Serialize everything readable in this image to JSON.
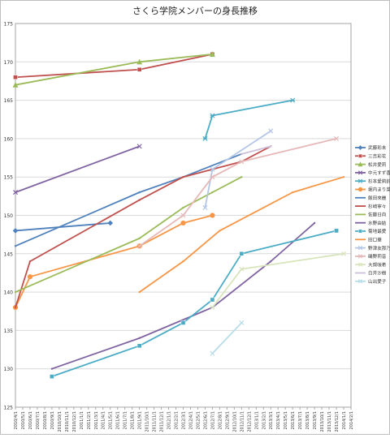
{
  "chart_data": {
    "type": "line",
    "title": "さくら学院メンバーの身長推移",
    "ylim": [
      125,
      175
    ],
    "y_ticks": [
      125,
      130,
      135,
      140,
      145,
      150,
      155,
      160,
      165,
      170,
      175
    ],
    "x_start": "2010/4/1",
    "x_tick_labels": [
      "2010/4/1",
      "2010/5/1",
      "2010/6/1",
      "2010/7/1",
      "2010/8/1",
      "2010/9/1",
      "2010/10/1",
      "2010/11/1",
      "2010/12/1",
      "2011/1/1",
      "2011/2/1",
      "2011/3/1",
      "2011/4/1",
      "2011/5/1",
      "2011/6/1",
      "2011/7/1",
      "2011/8/1",
      "2011/9/1",
      "2011/10/1",
      "2011/11/1",
      "2011/12/1",
      "2012/1/1",
      "2012/2/1",
      "2012/3/1",
      "2012/4/1",
      "2012/5/1",
      "2012/6/1",
      "2012/7/1",
      "2012/8/1",
      "2012/9/1",
      "2012/10/1",
      "2012/11/1",
      "2012/12/1",
      "2013/1/1",
      "2013/2/1",
      "2013/3/1",
      "2013/4/1",
      "2013/5/1",
      "2013/6/1",
      "2013/7/1",
      "2013/8/1",
      "2013/9/1",
      "2013/10/1",
      "2013/11/1",
      "2013/12/1",
      "2014/1/1",
      "2014/2/1"
    ],
    "grid": "horizontal",
    "legend_position": "right",
    "series": [
      {
        "name": "武藤彩未",
        "color": "#4F81BD",
        "marker": "diamond",
        "x": [
          "2010/4/1",
          "2011/5/1"
        ],
        "values": [
          148,
          149
        ]
      },
      {
        "name": "三吉彩花",
        "color": "#C0504D",
        "marker": "square",
        "x": [
          "2010/4/1",
          "2011/9/1",
          "2012/7/1"
        ],
        "values": [
          168,
          169,
          171
        ]
      },
      {
        "name": "松井愛莉",
        "color": "#9BBB59",
        "marker": "triangle",
        "x": [
          "2010/4/1",
          "2011/9/1",
          "2012/7/1"
        ],
        "values": [
          167,
          170,
          171
        ]
      },
      {
        "name": "中元すず香",
        "color": "#8064A2",
        "marker": "x",
        "x": [
          "2010/4/1",
          "2011/9/1"
        ],
        "values": [
          153,
          159
        ]
      },
      {
        "name": "杉本愛莉鈴",
        "color": "#4BACC6",
        "marker": "star",
        "x": [
          "2012/6/1",
          "2012/7/1",
          "2013/6/1"
        ],
        "values": [
          160,
          163,
          165
        ]
      },
      {
        "name": "堀内まり菜",
        "color": "#F79646",
        "marker": "circle",
        "x": [
          "2010/4/1",
          "2010/6/1",
          "2011/9/1",
          "2012/3/1",
          "2012/7/1"
        ],
        "values": [
          138,
          142,
          146,
          149,
          150
        ]
      },
      {
        "name": "飯田來麗",
        "color": "#4F81BD",
        "marker": "none",
        "x": [
          "2010/4/1",
          "2011/9/1",
          "2012/3/1",
          "2012/11/1"
        ],
        "values": [
          146,
          153,
          155,
          158
        ]
      },
      {
        "name": "杉﨑寧々",
        "color": "#C0504D",
        "marker": "none",
        "x": [
          "2010/4/1",
          "2010/6/1",
          "2011/9/1",
          "2012/3/1",
          "2012/11/1",
          "2013/3/1"
        ],
        "values": [
          138,
          144,
          152,
          155,
          157,
          159
        ]
      },
      {
        "name": "佐藤日向",
        "color": "#9BBB59",
        "marker": "none",
        "x": [
          "2010/4/1",
          "2011/9/1",
          "2012/3/1",
          "2012/7/1",
          "2012/11/1"
        ],
        "values": [
          140,
          147,
          151,
          153,
          155
        ]
      },
      {
        "name": "水野由結",
        "color": "#8064A2",
        "marker": "none",
        "x": [
          "2010/9/1",
          "2011/9/1",
          "2012/7/1",
          "2013/3/1",
          "2013/9/1"
        ],
        "values": [
          130,
          134,
          138,
          144,
          149
        ]
      },
      {
        "name": "菊地最愛",
        "color": "#4BACC6",
        "marker": "square",
        "x": [
          "2010/9/1",
          "2011/9/1",
          "2012/3/1",
          "2012/7/1",
          "2012/11/1",
          "2013/12/1"
        ],
        "values": [
          129,
          133,
          136,
          139,
          145,
          148
        ]
      },
      {
        "name": "田口華",
        "color": "#F79646",
        "marker": "none",
        "x": [
          "2011/9/1",
          "2012/3/1",
          "2012/8/1",
          "2013/6/1",
          "2014/1/1"
        ],
        "values": [
          140,
          144,
          148,
          153,
          155
        ]
      },
      {
        "name": "野津友那乃",
        "color": "#B4C6E7",
        "marker": "x",
        "x": [
          "2012/6/1",
          "2012/7/1",
          "2013/3/1"
        ],
        "values": [
          151,
          156,
          161
        ]
      },
      {
        "name": "磯野莉音",
        "color": "#E6B8B7",
        "marker": "x",
        "x": [
          "2011/9/1",
          "2012/3/1",
          "2012/7/1",
          "2012/11/1",
          "2013/12/1"
        ],
        "values": [
          146,
          150,
          155,
          157,
          160
        ]
      },
      {
        "name": "大賀咲希",
        "color": "#D7E4BC",
        "marker": "x",
        "x": [
          "2012/7/1",
          "2012/11/1",
          "2014/1/1"
        ],
        "values": [
          138,
          143,
          145
        ]
      },
      {
        "name": "白井沙樹",
        "color": "#CCC0DA",
        "marker": "none",
        "x": [
          "2012/11/1",
          "2013/3/1"
        ],
        "values": [
          158,
          159
        ]
      },
      {
        "name": "山出愛子",
        "color": "#B7DDE8",
        "marker": "x",
        "x": [
          "2012/7/1",
          "2012/11/1"
        ],
        "values": [
          132,
          136
        ]
      }
    ]
  }
}
